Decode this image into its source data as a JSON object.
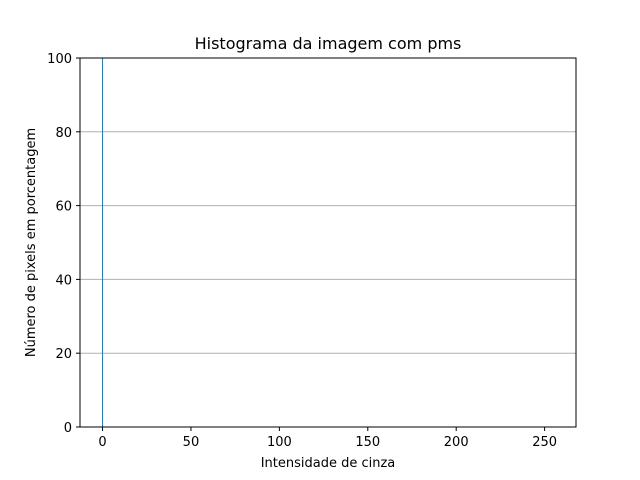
{
  "chart_data": {
    "type": "bar",
    "title": "Histograma da imagem com pms",
    "xlabel": "Intensidade de cinza",
    "ylabel": "Número de pixels em porcentagem",
    "xlim": [
      -12.75,
      267.75
    ],
    "ylim": [
      0,
      100
    ],
    "xticks": [
      0,
      50,
      100,
      150,
      200,
      250
    ],
    "yticks": [
      0,
      20,
      40,
      60,
      80,
      100
    ],
    "grid": {
      "axis": "y",
      "enabled": true,
      "color": "#b0b0b0"
    },
    "series": [
      {
        "color": "#1f77b4",
        "bars": [
          {
            "x": 0,
            "value": 100
          }
        ]
      }
    ]
  }
}
